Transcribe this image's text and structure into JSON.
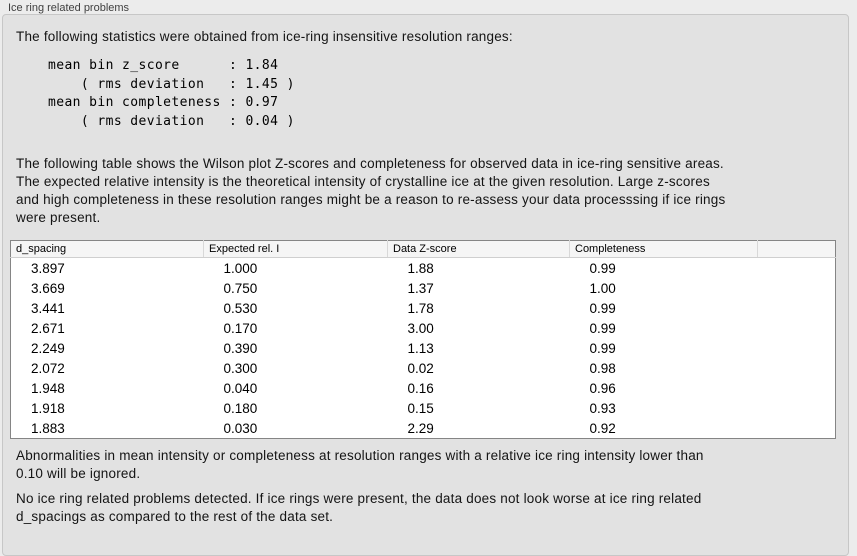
{
  "panel": {
    "title": "Ice ring related problems"
  },
  "statistics": {
    "intro": "The following statistics were obtained from ice-ring insensitive resolution ranges:",
    "block": "mean bin z_score      : 1.84\n    ( rms deviation   : 1.45 )\nmean bin completeness : 0.97\n    ( rms deviation   : 0.04 )",
    "mean_bin_z_score": "1.84",
    "z_score_rms_deviation": "1.45",
    "mean_bin_completeness": "0.97",
    "completeness_rms_deviation": "0.04"
  },
  "description": "The following table shows the Wilson plot Z-scores and completeness for observed data in ice-ring sensitive areas.\nThe expected relative intensity is the theoretical intensity of crystalline ice at the given resolution. Large z-scores\nand high completeness in these resolution ranges might be a reason to re-assess your data processsing if ice rings\nwere present.",
  "table": {
    "columns": [
      "d_spacing",
      "Expected rel. I",
      "Data Z-score",
      "Completeness"
    ],
    "rows": [
      [
        "3.897",
        "1.000",
        "1.88",
        "0.99"
      ],
      [
        "3.669",
        "0.750",
        "1.37",
        "1.00"
      ],
      [
        "3.441",
        "0.530",
        "1.78",
        "0.99"
      ],
      [
        "2.671",
        "0.170",
        "3.00",
        "0.99"
      ],
      [
        "2.249",
        "0.390",
        "1.13",
        "0.99"
      ],
      [
        "2.072",
        "0.300",
        "0.02",
        "0.98"
      ],
      [
        "1.948",
        "0.040",
        "0.16",
        "0.96"
      ],
      [
        "1.918",
        "0.180",
        "0.15",
        "0.93"
      ],
      [
        "1.883",
        "0.030",
        "2.29",
        "0.92"
      ]
    ]
  },
  "footer": {
    "ignore_note": "Abnormalities in mean intensity or completeness at resolution ranges with a relative ice ring intensity lower than\n0.10 will be ignored.",
    "conclusion": "No ice ring related problems detected. If ice rings were present, the data does not look worse at ice ring related\nd_spacings as compared to the rest of the data set."
  },
  "colors": {
    "page_background": "#ececec",
    "groupbox_background": "#e2e2e2",
    "groupbox_border": "#c7c7c7",
    "table_border": "#858585",
    "table_header_background": "#f5f5f5"
  }
}
